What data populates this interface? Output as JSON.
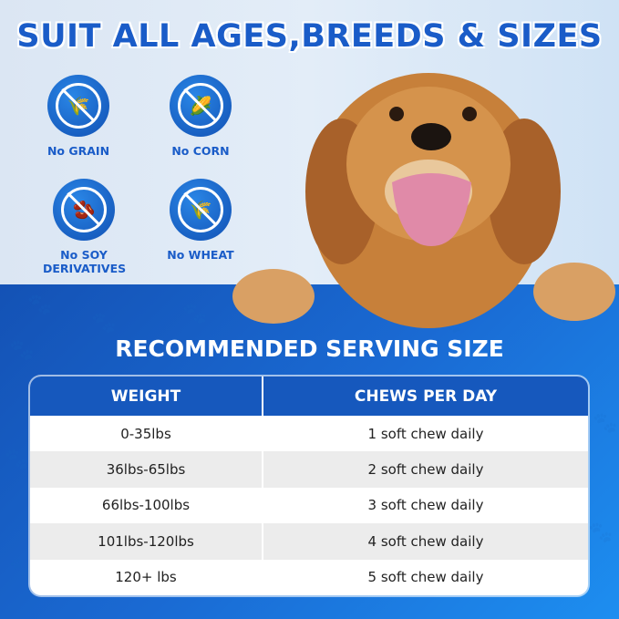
{
  "headline": "SUIT ALL AGES,BREEDS & SIZES",
  "badges": [
    {
      "label": "No GRAIN",
      "icon": "no-grain-icon"
    },
    {
      "label": "No CORN",
      "icon": "no-corn-icon"
    },
    {
      "label": "No SOY DERIVATIVES",
      "icon": "no-soy-icon"
    },
    {
      "label": "No WHEAT",
      "icon": "no-wheat-icon"
    }
  ],
  "serving": {
    "title": "RECOMMENDED SERVING SIZE",
    "headers": [
      "WEIGHT",
      "CHEWS PER DAY"
    ],
    "rows": [
      [
        "0-35lbs",
        "1 soft chew daily"
      ],
      [
        "36lbs-65lbs",
        "2 soft chew daily"
      ],
      [
        "66lbs-100lbs",
        "3 soft chew daily"
      ],
      [
        "101lbs-120lbs",
        "4 soft chew daily"
      ],
      [
        "120+ lbs",
        "5 soft chew daily"
      ]
    ]
  },
  "colors": {
    "brand_blue": "#1a5cc8",
    "header_blue": "#1658bd"
  }
}
